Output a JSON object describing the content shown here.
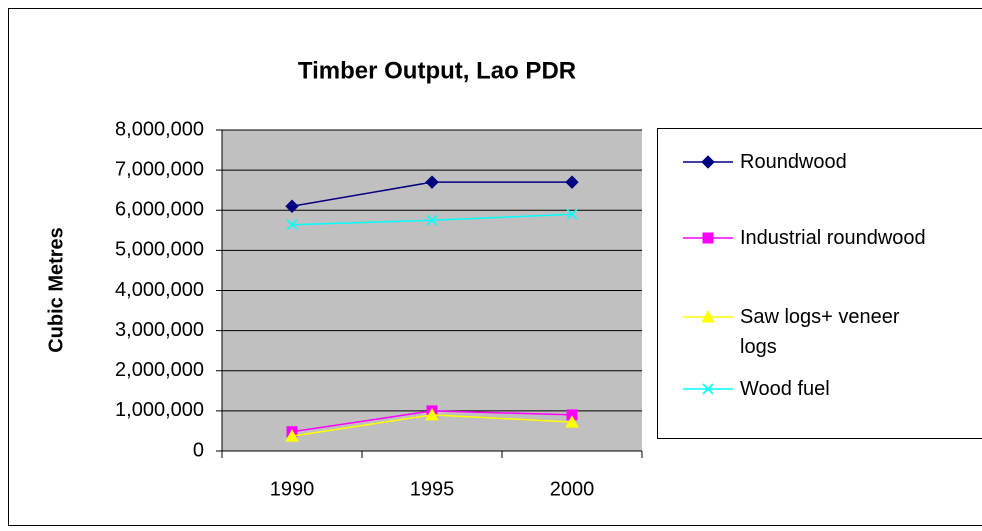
{
  "chart_data": {
    "type": "line",
    "title": "Timber Output, Lao PDR",
    "y_label": "Cubic Metres",
    "categories": [
      "1990",
      "1995",
      "2000"
    ],
    "series": [
      {
        "name": "Roundwood",
        "color": "#000080",
        "marker": "diamond",
        "values": [
          6100000,
          6700000,
          6700000
        ]
      },
      {
        "name": "Industrial roundwood",
        "color": "#ff00ff",
        "marker": "square",
        "values": [
          480000,
          1000000,
          900000
        ]
      },
      {
        "name": "Saw logs+ veneer logs",
        "color": "#ffff00",
        "marker": "triangle",
        "values": [
          370000,
          900000,
          720000
        ]
      },
      {
        "name": "Wood fuel",
        "color": "#00ffff",
        "marker": "x",
        "values": [
          5640000,
          5750000,
          5900000
        ]
      }
    ],
    "ylim": [
      0,
      8000000
    ],
    "yticks": [
      0,
      {
        "value": 1000000,
        "label": "1,000,000"
      },
      {
        "value": 2000000,
        "label": "2,000,000"
      },
      {
        "value": 3000000,
        "label": "3,000,000"
      },
      {
        "value": 4000000,
        "label": "4,000,000"
      },
      {
        "value": 5000000,
        "label": "5,000,000"
      },
      {
        "value": 6000000,
        "label": "6,000,000"
      },
      {
        "value": 7000000,
        "label": "7,000,000"
      },
      {
        "value": 8000000,
        "label": "8,000,000"
      }
    ],
    "grid": true,
    "plot_background": "#c0c0c0",
    "legend": "right"
  }
}
